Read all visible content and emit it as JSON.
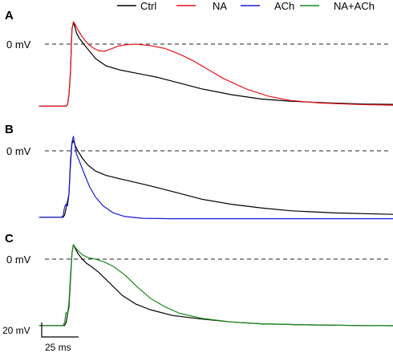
{
  "chart_data": {
    "type": "line",
    "legend": {
      "placement": "top-right",
      "entries": [
        {
          "name": "Ctrl",
          "color": "#000000"
        },
        {
          "name": "NA",
          "color": "#e8151b"
        },
        {
          "name": "ACh",
          "color": "#1a1ad6"
        },
        {
          "name": "NA+ACh",
          "color": "#1a8a1a"
        }
      ]
    },
    "scale_bars": {
      "voltage_label": "20 mV",
      "time_label": "25 ms"
    },
    "panels": [
      {
        "letter": "A",
        "zero_label": "0 mV",
        "series": [
          {
            "name": "Ctrl",
            "color": "#000000",
            "points": [
              [
                -20,
                -86
              ],
              [
                -2,
                -86
              ],
              [
                -1,
                -84
              ],
              [
                0,
                -70
              ],
              [
                1,
                -40
              ],
              [
                2,
                20
              ],
              [
                3,
                30
              ],
              [
                4,
                24
              ],
              [
                5,
                16
              ],
              [
                7,
                8
              ],
              [
                10,
                0
              ],
              [
                14,
                -10
              ],
              [
                18,
                -20
              ],
              [
                25,
                -30
              ],
              [
                35,
                -36
              ],
              [
                50,
                -42
              ],
              [
                60,
                -46
              ],
              [
                75,
                -54
              ],
              [
                90,
                -62
              ],
              [
                110,
                -70
              ],
              [
                130,
                -76
              ],
              [
                150,
                -79
              ],
              [
                170,
                -81
              ],
              [
                200,
                -83
              ],
              [
                240,
                -84
              ],
              [
                300,
                -84.5
              ],
              [
                340,
                -84.5
              ]
            ]
          },
          {
            "name": "NA",
            "color": "#e8151b",
            "points": [
              [
                -20,
                -86
              ],
              [
                -2,
                -86
              ],
              [
                -1,
                -84
              ],
              [
                0,
                -70
              ],
              [
                1,
                -40
              ],
              [
                2,
                20
              ],
              [
                3,
                31
              ],
              [
                4,
                28
              ],
              [
                6,
                20
              ],
              [
                9,
                10
              ],
              [
                13,
                0
              ],
              [
                17,
                -6
              ],
              [
                20,
                -9
              ],
              [
                24,
                -10
              ],
              [
                28,
                -7
              ],
              [
                33,
                -3
              ],
              [
                38,
                -1
              ],
              [
                45,
                0
              ],
              [
                55,
                -2
              ],
              [
                65,
                -6
              ],
              [
                75,
                -14
              ],
              [
                85,
                -24
              ],
              [
                95,
                -36
              ],
              [
                105,
                -48
              ],
              [
                120,
                -62
              ],
              [
                135,
                -72
              ],
              [
                150,
                -78
              ],
              [
                170,
                -81.5
              ],
              [
                195,
                -83.5
              ],
              [
                230,
                -85
              ],
              [
                270,
                -86
              ],
              [
                340,
                -86.5
              ]
            ]
          }
        ]
      },
      {
        "letter": "B",
        "zero_label": "0 mV",
        "series": [
          {
            "name": "Ctrl",
            "color": "#000000",
            "points": [
              [
                -20,
                -92
              ],
              [
                -4,
                -92
              ],
              [
                -3,
                -89
              ],
              [
                -2,
                -80
              ],
              [
                0,
                -60
              ],
              [
                1,
                -20
              ],
              [
                2,
                10
              ],
              [
                3,
                14
              ],
              [
                4,
                8
              ],
              [
                6,
                0
              ],
              [
                9,
                -10
              ],
              [
                13,
                -20
              ],
              [
                18,
                -28
              ],
              [
                25,
                -34
              ],
              [
                35,
                -39
              ],
              [
                50,
                -46
              ],
              [
                60,
                -51
              ],
              [
                75,
                -59
              ],
              [
                90,
                -67
              ],
              [
                110,
                -74
              ],
              [
                130,
                -79
              ],
              [
                150,
                -83
              ],
              [
                180,
                -86
              ],
              [
                220,
                -88
              ],
              [
                270,
                -89.5
              ],
              [
                340,
                -90
              ]
            ]
          },
          {
            "name": "ACh",
            "color": "#1a1ad6",
            "points": [
              [
                -20,
                -92
              ],
              [
                -5,
                -92
              ],
              [
                -4,
                -90
              ],
              [
                -3,
                -78
              ],
              [
                -2,
                -74
              ],
              [
                -1,
                -76
              ],
              [
                0,
                -60
              ],
              [
                1,
                -14
              ],
              [
                2,
                12
              ],
              [
                3,
                20
              ],
              [
                4,
                8
              ],
              [
                5,
                -4
              ],
              [
                7,
                -14
              ],
              [
                10,
                -30
              ],
              [
                14,
                -50
              ],
              [
                18,
                -64
              ],
              [
                23,
                -76
              ],
              [
                30,
                -86
              ],
              [
                38,
                -91
              ],
              [
                50,
                -93.5
              ],
              [
                70,
                -94
              ],
              [
                120,
                -94
              ],
              [
                200,
                -94
              ],
              [
                340,
                -94
              ]
            ]
          }
        ]
      },
      {
        "letter": "C",
        "zero_label": "0 mV",
        "series": [
          {
            "name": "Ctrl",
            "color": "#000000",
            "points": [
              [
                -20,
                -92
              ],
              [
                -3,
                -92
              ],
              [
                -2,
                -88
              ],
              [
                0,
                -66
              ],
              [
                1,
                -30
              ],
              [
                2,
                8
              ],
              [
                3,
                20
              ],
              [
                4,
                16
              ],
              [
                6,
                8
              ],
              [
                9,
                0
              ],
              [
                12,
                -6
              ],
              [
                15,
                -10
              ],
              [
                20,
                -18
              ],
              [
                28,
                -34
              ],
              [
                36,
                -50
              ],
              [
                45,
                -62
              ],
              [
                55,
                -70
              ],
              [
                70,
                -78
              ],
              [
                90,
                -83
              ],
              [
                110,
                -87
              ],
              [
                130,
                -89.5
              ],
              [
                160,
                -91
              ],
              [
                200,
                -92
              ],
              [
                260,
                -92.5
              ],
              [
                340,
                -92.5
              ]
            ]
          },
          {
            "name": "NA+ACh",
            "color": "#1a8a1a",
            "points": [
              [
                -20,
                -92
              ],
              [
                -4,
                -92
              ],
              [
                -3,
                -88
              ],
              [
                -2,
                -74
              ],
              [
                -1,
                -76
              ],
              [
                0,
                -60
              ],
              [
                1,
                -24
              ],
              [
                2,
                8
              ],
              [
                3,
                20
              ],
              [
                4,
                17
              ],
              [
                6,
                12
              ],
              [
                9,
                6
              ],
              [
                13,
                2
              ],
              [
                18,
                0
              ],
              [
                24,
                -4
              ],
              [
                30,
                -10
              ],
              [
                38,
                -22
              ],
              [
                46,
                -38
              ],
              [
                55,
                -54
              ],
              [
                65,
                -66
              ],
              [
                75,
                -75
              ],
              [
                90,
                -82
              ],
              [
                110,
                -87
              ],
              [
                130,
                -89.5
              ],
              [
                160,
                -91
              ],
              [
                200,
                -92
              ],
              [
                260,
                -92.5
              ],
              [
                340,
                -92.5
              ]
            ]
          }
        ]
      }
    ]
  }
}
